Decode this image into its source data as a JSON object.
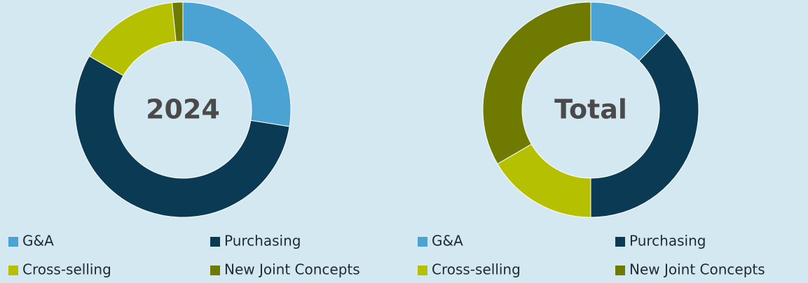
{
  "chart_data": [
    {
      "type": "donut",
      "title": "2024",
      "categories": [
        "G&A",
        "Purchasing",
        "Cross-selling",
        "New Joint Concepts"
      ],
      "values": [
        27.5,
        55.8,
        15.1,
        1.6
      ],
      "colors": [
        "#4aa3d3",
        "#0b3a55",
        "#b5c000",
        "#6e7a00"
      ]
    },
    {
      "type": "donut",
      "title": "Total",
      "categories": [
        "G&A",
        "Purchasing",
        "Cross-selling",
        "New Joint Concepts"
      ],
      "values": [
        12.4,
        37.6,
        16.6,
        33.4
      ],
      "colors": [
        "#4aa3d3",
        "#0b3a55",
        "#b5c000",
        "#6e7a00"
      ]
    }
  ]
}
